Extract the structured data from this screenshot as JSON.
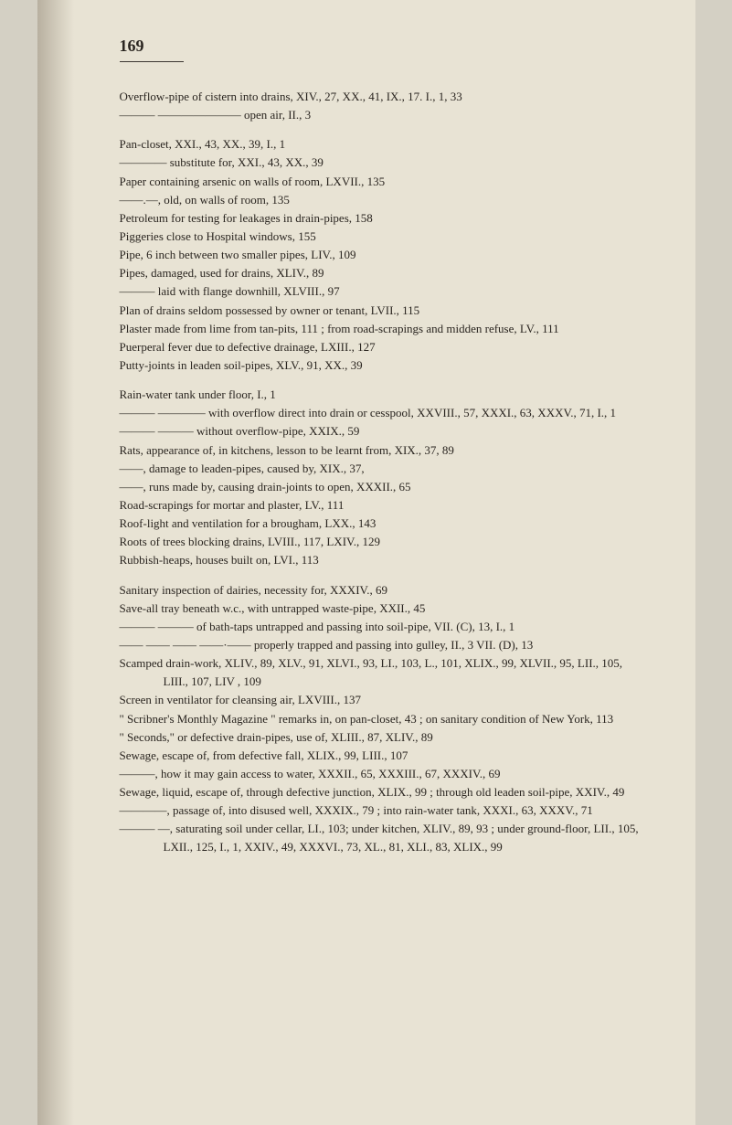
{
  "pageNumber": "169",
  "lines": [
    "Overflow-pipe of cistern into drains, XIV., 27, XX., 41, IX., 17. I., 1, 33",
    "——— ——————— open air, II., 3",
    "GAP",
    "Pan-closet, XXI., 43, XX., 39, I., 1",
    "———— substitute for, XXI., 43, XX., 39",
    "Paper containing arsenic on walls of room, LXVII., 135",
    "——.—, old, on walls of room, 135",
    "Petroleum for testing for leakages in drain-pipes, 158",
    "Piggeries close to Hospital windows, 155",
    "Pipe, 6 inch between two smaller pipes, LIV., 109",
    "Pipes, damaged, used for drains, XLIV., 89",
    "——— laid with flange downhill, XLVIII., 97",
    "Plan of drains seldom possessed by owner or tenant, LVII., 115",
    "Plaster made from lime from tan-pits, 111 ; from road-scrapings and midden refuse, LV., 111",
    "Puerperal fever due to defective drainage, LXIII., 127",
    "Putty-joints in leaden soil-pipes, XLV., 91, XX., 39",
    "GAP",
    "Rain-water tank under floor, I., 1",
    "——— ———— with overflow direct into drain or cesspool, XXVIII., 57, XXXI., 63, XXXV., 71, I., 1",
    "——— ——— without overflow-pipe, XXIX., 59",
    "Rats, appearance of, in kitchens, lesson to be learnt from, XIX., 37, 89",
    "——, damage to leaden-pipes, caused by, XIX., 37,",
    "——, runs made by, causing drain-joints to open, XXXII., 65",
    "Road-scrapings for mortar and plaster, LV., 111",
    "Roof-light and ventilation for a brougham, LXX., 143",
    "Roots of trees blocking drains, LVIII., 117, LXIV., 129",
    "Rubbish-heaps, houses built on, LVI., 113",
    "GAP",
    "Sanitary inspection of dairies, necessity for, XXXIV., 69",
    "Save-all tray beneath w.c., with untrapped waste-pipe, XXII., 45",
    "——— ——— of bath-taps untrapped and passing into soil-pipe, VII. (C), 13, I., 1",
    "—— —— —— ——·—— properly trapped and passing into gulley, II., 3 VII. (D), 13",
    "Scamped drain-work, XLIV., 89, XLV., 91, XLVI., 93, LI., 103, L., 101, XLIX., 99, XLVII., 95, LII., 105, LIII., 107, LIV , 109",
    "Screen in ventilator for cleansing air, LXVIII., 137",
    "\" Scribner's Monthly Magazine \" remarks in, on pan-closet, 43 ; on sanitary condition of New York, 113",
    "\" Seconds,\" or defective drain-pipes, use of, XLIII., 87, XLIV., 89",
    "Sewage, escape of, from defective fall, XLIX., 99, LIII., 107",
    "———, how it may gain access to water, XXXII., 65, XXXIII., 67, XXXIV., 69",
    "Sewage, liquid, escape of, through defective junction, XLIX., 99 ; through old leaden soil-pipe, XXIV., 49",
    "————, passage of, into disused well, XXXIX., 79 ; into rain-water tank, XXXI., 63, XXXV., 71",
    "——— —, saturating soil under cellar, LI., 103; under kitchen, XLIV., 89, 93 ; under ground-floor, LII., 105, LXII., 125, I., 1, XXIV., 49, XXXVI., 73, XL., 81, XLI., 83, XLIX., 99"
  ]
}
